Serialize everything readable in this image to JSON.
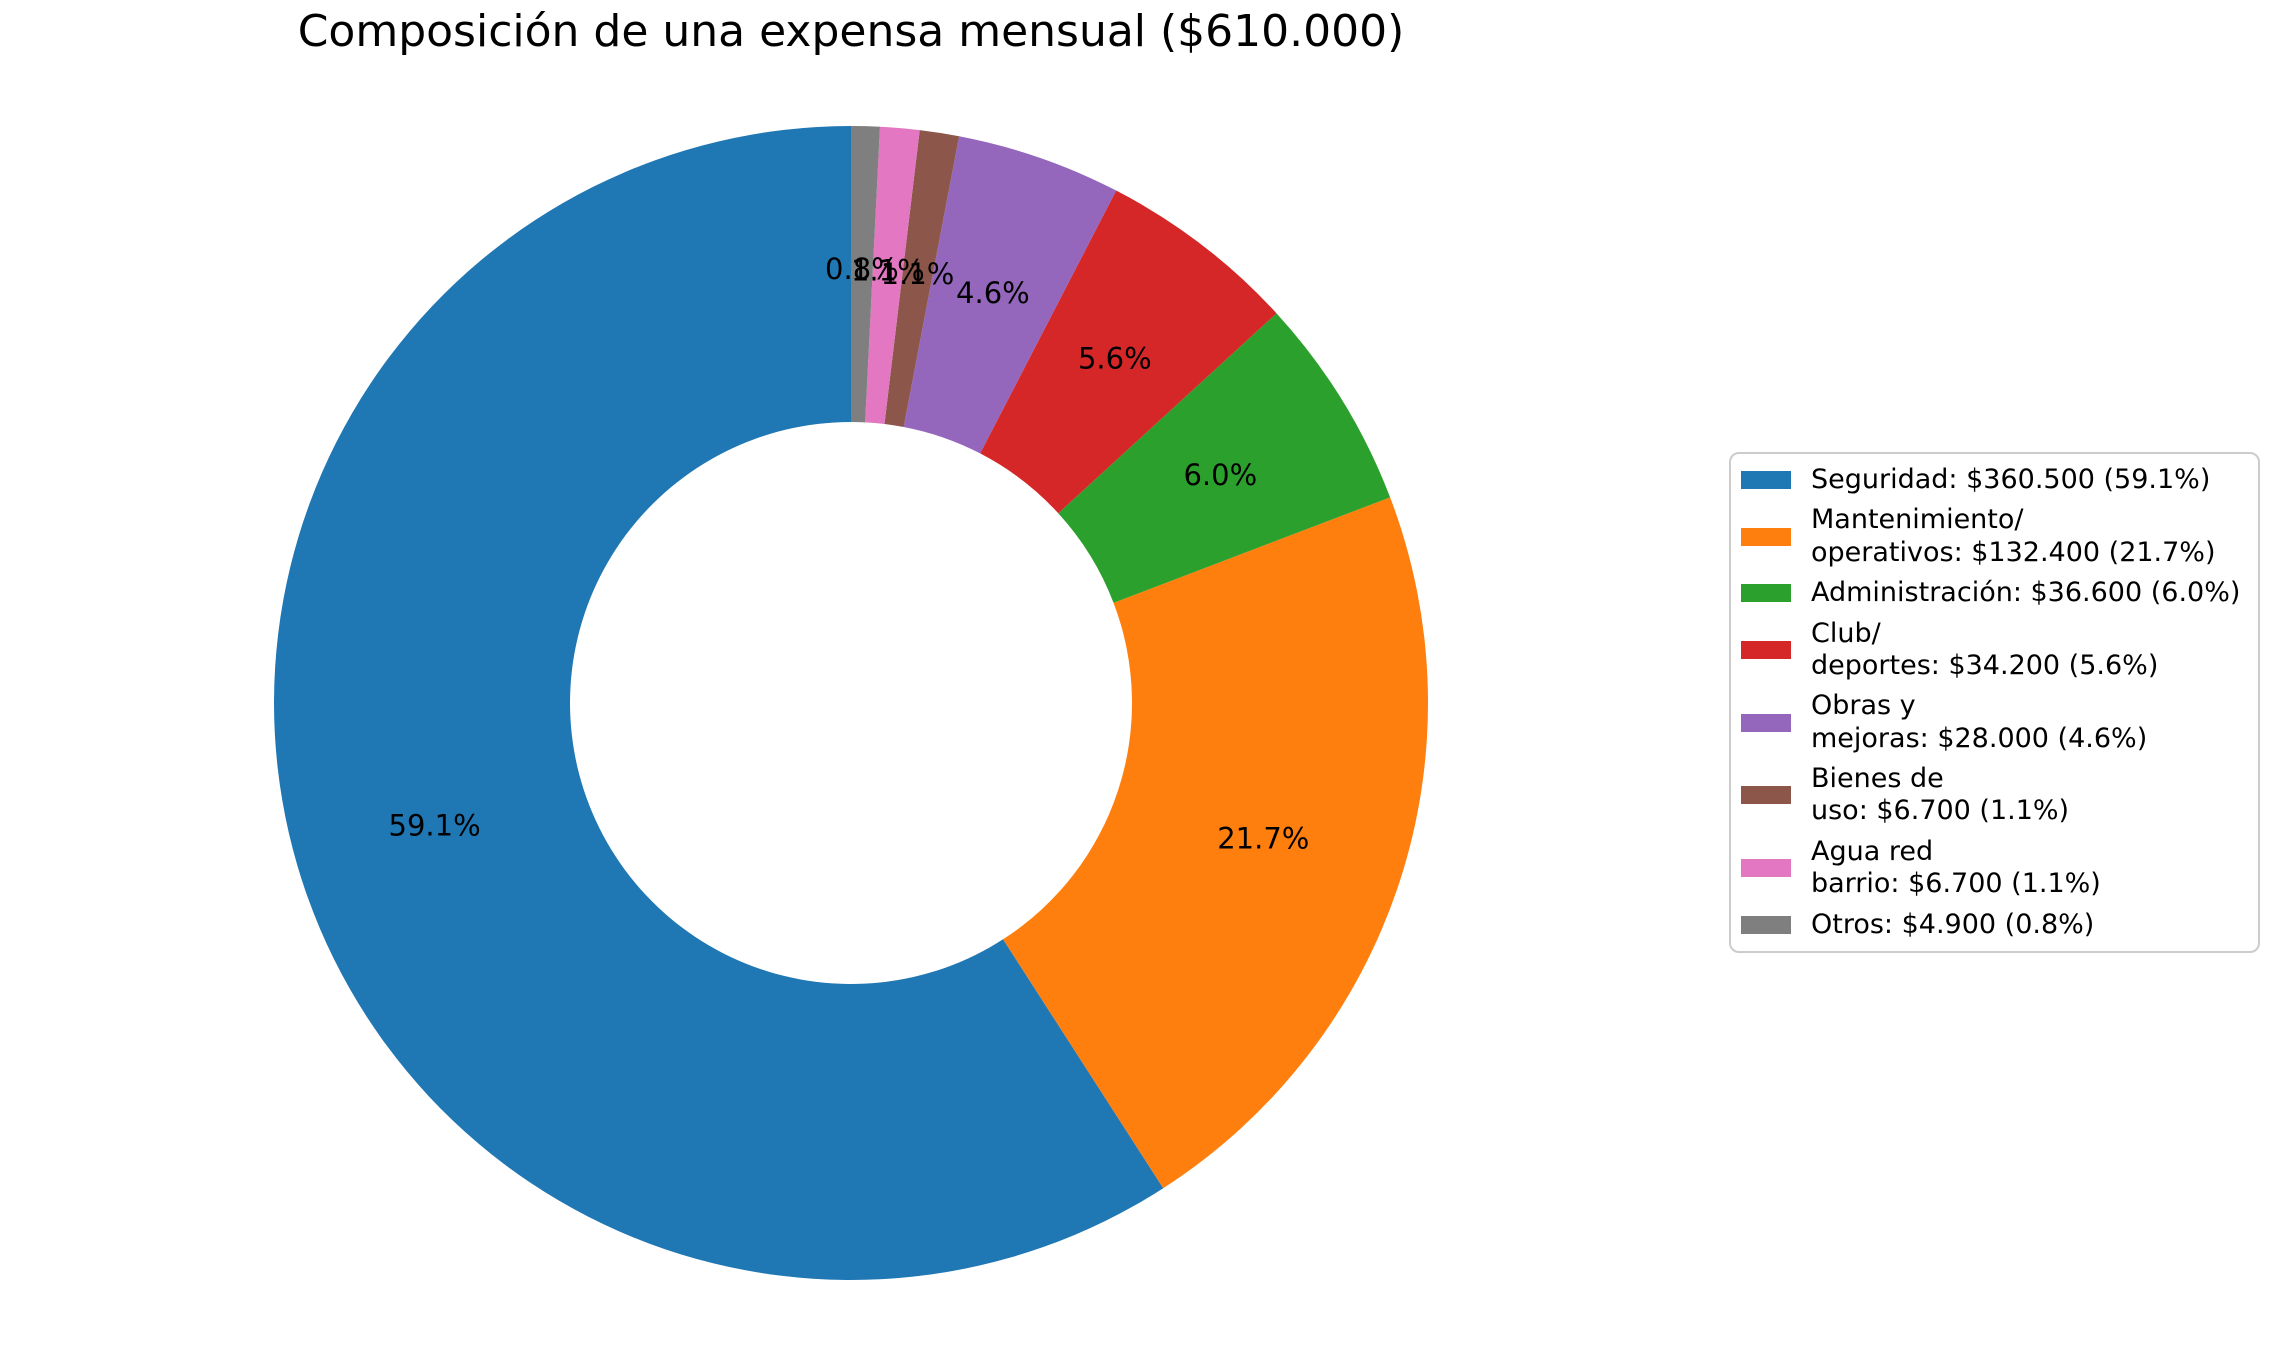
{
  "title": "Composición de una expensa mensual ($610.000)",
  "chart_data": {
    "type": "pie",
    "donut": true,
    "title": "Composición de una expensa mensual ($610.000)",
    "total_value": 610000,
    "total_label": "$610.000",
    "start_angle_deg": 90,
    "direction": "counterclockwise",
    "legend_position": "right",
    "series": [
      {
        "label": "Seguridad",
        "legend_label": "Seguridad: $360.500 (59.1%)",
        "amount_label": "$360.500",
        "value": 360500,
        "pct": 59.1,
        "pct_label": "59.1%",
        "color": "#1f77b4"
      },
      {
        "label": "Mantenimiento/operativos",
        "legend_label": "Mantenimiento/\noperativos: $132.400 (21.7%)",
        "amount_label": "$132.400",
        "value": 132400,
        "pct": 21.7,
        "pct_label": "21.7%",
        "color": "#ff7f0e"
      },
      {
        "label": "Administración",
        "legend_label": "Administración: $36.600 (6.0%)",
        "amount_label": "$36.600",
        "value": 36600,
        "pct": 6.0,
        "pct_label": "6.0%",
        "color": "#2ca02c"
      },
      {
        "label": "Club/deportes",
        "legend_label": "Club/\ndeportes: $34.200 (5.6%)",
        "amount_label": "$34.200",
        "value": 34200,
        "pct": 5.6,
        "pct_label": "5.6%",
        "color": "#d62728"
      },
      {
        "label": "Obras y mejoras",
        "legend_label": "Obras y\nmejoras: $28.000 (4.6%)",
        "amount_label": "$28.000",
        "value": 28000,
        "pct": 4.6,
        "pct_label": "4.6%",
        "color": "#9467bd"
      },
      {
        "label": "Bienes de uso",
        "legend_label": "Bienes de\nuso: $6.700 (1.1%)",
        "amount_label": "$6.700",
        "value": 6700,
        "pct": 1.1,
        "pct_label": "1.1%",
        "color": "#8c564b"
      },
      {
        "label": "Agua red barrio",
        "legend_label": "Agua red\nbarrio: $6.700 (1.1%)",
        "amount_label": "$6.700",
        "value": 6700,
        "pct": 1.1,
        "pct_label": "1.1%",
        "color": "#e377c2"
      },
      {
        "label": "Otros",
        "legend_label": "Otros: $4.900 (0.8%)",
        "amount_label": "$4.900",
        "value": 4900,
        "pct": 0.8,
        "pct_label": "0.8%",
        "color": "#7f7f7f"
      }
    ]
  }
}
